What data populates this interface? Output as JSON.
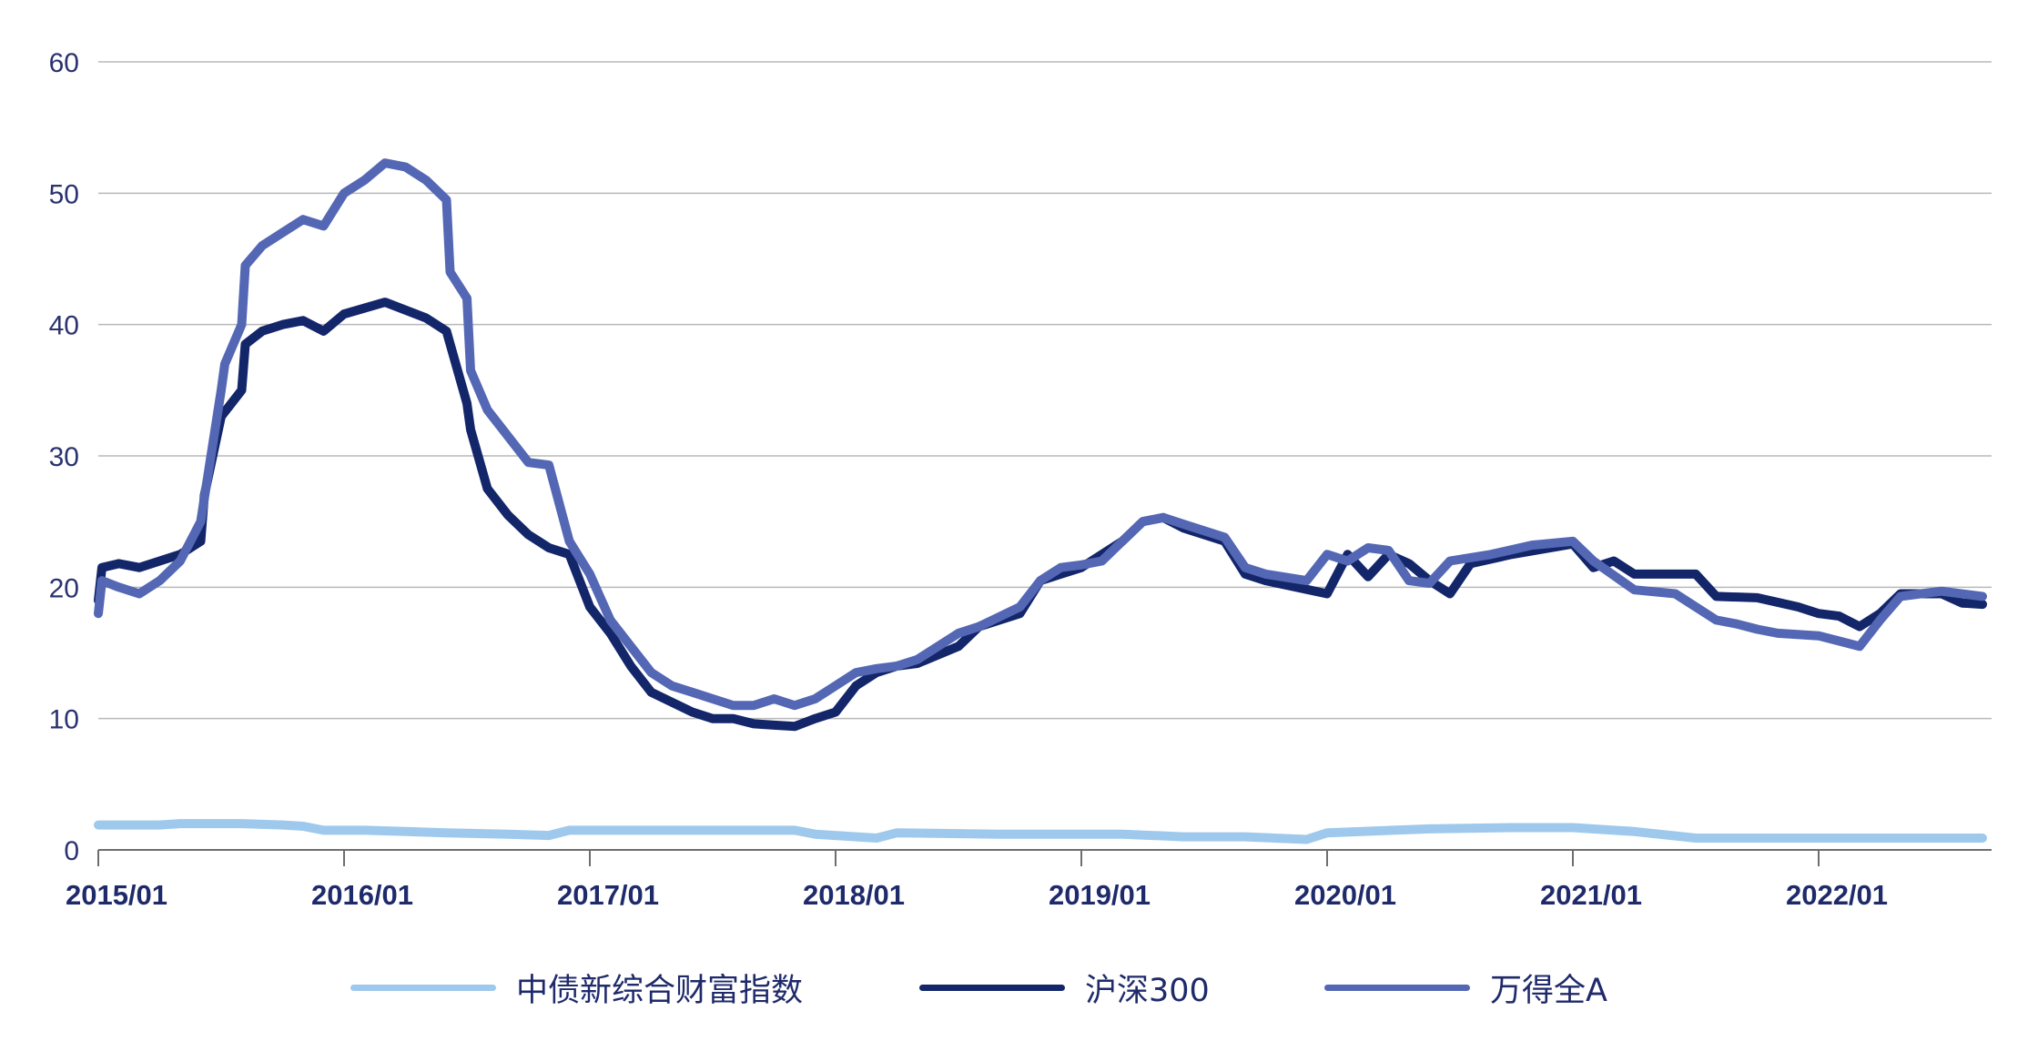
{
  "chart_data": {
    "type": "line",
    "title": "",
    "xlabel": "",
    "ylabel": "",
    "ylim": [
      0,
      60
    ],
    "y_ticks": [
      "0",
      "10",
      "20",
      "30",
      "40",
      "50",
      "60"
    ],
    "x_ticks": [
      "2015/01",
      "2016/01",
      "2017/01",
      "2018/01",
      "2019/01",
      "2020/01",
      "2021/01",
      "2022/01"
    ],
    "grid": "horizontal",
    "legend_position": "bottom",
    "series": [
      {
        "name": "中债新综合财富指数",
        "color": "#9ec9ec",
        "points": [
          [
            "2015/01",
            1.9
          ],
          [
            "2015/04",
            1.9
          ],
          [
            "2015/05",
            2.0
          ],
          [
            "2015/08",
            2.0
          ],
          [
            "2015/10",
            1.9
          ],
          [
            "2015/11",
            1.8
          ],
          [
            "2015/12",
            1.5
          ],
          [
            "2016/02",
            1.5
          ],
          [
            "2016/04",
            1.4
          ],
          [
            "2016/06",
            1.3
          ],
          [
            "2016/09",
            1.2
          ],
          [
            "2016/11",
            1.1
          ],
          [
            "2016/12",
            1.5
          ],
          [
            "2017/05",
            1.5
          ],
          [
            "2017/11",
            1.5
          ],
          [
            "2017/12",
            1.2
          ],
          [
            "2018/03",
            0.9
          ],
          [
            "2018/04",
            1.3
          ],
          [
            "2018/09",
            1.2
          ],
          [
            "2019/03",
            1.2
          ],
          [
            "2019/06",
            1.0
          ],
          [
            "2019/09",
            1.0
          ],
          [
            "2019/12",
            0.8
          ],
          [
            "2020/01",
            1.3
          ],
          [
            "2020/06",
            1.6
          ],
          [
            "2020/10",
            1.7
          ],
          [
            "2021/01",
            1.7
          ],
          [
            "2021/04",
            1.4
          ],
          [
            "2021/07",
            0.9
          ],
          [
            "2022/01",
            0.9
          ],
          [
            "2022/09",
            0.9
          ]
        ]
      },
      {
        "name": "沪深300",
        "color": "#13266a",
        "points": [
          [
            "2015/01",
            19.0
          ],
          [
            "2015/01",
            21.5
          ],
          [
            "2015/02",
            21.8
          ],
          [
            "2015/03",
            21.5
          ],
          [
            "2015/04",
            22.0
          ],
          [
            "2015/05",
            22.5
          ],
          [
            "2015/06",
            23.5
          ],
          [
            "2015/06",
            27.0
          ],
          [
            "2015/07",
            33.0
          ],
          [
            "2015/08",
            35.0
          ],
          [
            "2015/08",
            38.5
          ],
          [
            "2015/09",
            39.5
          ],
          [
            "2015/10",
            40.0
          ],
          [
            "2015/11",
            40.3
          ],
          [
            "2015/12",
            39.5
          ],
          [
            "2016/01",
            40.8
          ],
          [
            "2016/03",
            41.7
          ],
          [
            "2016/05",
            40.5
          ],
          [
            "2016/06",
            39.5
          ],
          [
            "2016/07",
            34.0
          ],
          [
            "2016/07",
            32.0
          ],
          [
            "2016/08",
            27.5
          ],
          [
            "2016/09",
            25.5
          ],
          [
            "2016/10",
            24.0
          ],
          [
            "2016/11",
            23.0
          ],
          [
            "2016/12",
            22.5
          ],
          [
            "2017/01",
            18.5
          ],
          [
            "2017/02",
            16.5
          ],
          [
            "2017/03",
            14.0
          ],
          [
            "2017/04",
            12.0
          ],
          [
            "2017/06",
            10.5
          ],
          [
            "2017/07",
            10.0
          ],
          [
            "2017/08",
            10.0
          ],
          [
            "2017/09",
            9.6
          ],
          [
            "2017/10",
            9.5
          ],
          [
            "2017/11",
            9.4
          ],
          [
            "2017/12",
            10.0
          ],
          [
            "2018/01",
            10.5
          ],
          [
            "2018/02",
            12.5
          ],
          [
            "2018/03",
            13.5
          ],
          [
            "2018/04",
            14.0
          ],
          [
            "2018/05",
            14.2
          ],
          [
            "2018/07",
            15.5
          ],
          [
            "2018/08",
            17.0
          ],
          [
            "2018/10",
            18.0
          ],
          [
            "2018/11",
            20.5
          ],
          [
            "2018/12",
            21.0
          ],
          [
            "2019/01",
            21.5
          ],
          [
            "2019/02",
            22.5
          ],
          [
            "2019/03",
            23.5
          ],
          [
            "2019/04",
            25.0
          ],
          [
            "2019/05",
            25.3
          ],
          [
            "2019/06",
            24.5
          ],
          [
            "2019/08",
            23.5
          ],
          [
            "2019/09",
            21.0
          ],
          [
            "2019/10",
            20.5
          ],
          [
            "2020/01",
            19.5
          ],
          [
            "2020/02",
            22.5
          ],
          [
            "2020/03",
            20.8
          ],
          [
            "2020/04",
            22.5
          ],
          [
            "2020/05",
            21.8
          ],
          [
            "2020/06",
            20.5
          ],
          [
            "2020/07",
            19.5
          ],
          [
            "2020/08",
            21.8
          ],
          [
            "2020/10",
            22.5
          ],
          [
            "2021/01",
            23.3
          ],
          [
            "2021/02",
            21.5
          ],
          [
            "2021/03",
            22.0
          ],
          [
            "2021/04",
            21.0
          ],
          [
            "2021/07",
            21.0
          ],
          [
            "2021/08",
            19.3
          ],
          [
            "2021/10",
            19.2
          ],
          [
            "2021/12",
            18.5
          ],
          [
            "2022/01",
            18.0
          ],
          [
            "2022/02",
            17.8
          ],
          [
            "2022/03",
            17.0
          ],
          [
            "2022/04",
            18.0
          ],
          [
            "2022/05",
            19.5
          ],
          [
            "2022/07",
            19.5
          ],
          [
            "2022/08",
            18.8
          ],
          [
            "2022/09",
            18.7
          ]
        ]
      },
      {
        "name": "万得全A",
        "color": "#5467b4",
        "points": [
          [
            "2015/01",
            18.0
          ],
          [
            "2015/01",
            20.5
          ],
          [
            "2015/02",
            20.0
          ],
          [
            "2015/03",
            19.5
          ],
          [
            "2015/04",
            20.5
          ],
          [
            "2015/05",
            22.0
          ],
          [
            "2015/06",
            25.0
          ],
          [
            "2015/07",
            35.0
          ],
          [
            "2015/07",
            37.0
          ],
          [
            "2015/08",
            40.0
          ],
          [
            "2015/08",
            44.5
          ],
          [
            "2015/09",
            46.0
          ],
          [
            "2015/10",
            47.0
          ],
          [
            "2015/11",
            48.0
          ],
          [
            "2015/12",
            47.5
          ],
          [
            "2016/01",
            50.0
          ],
          [
            "2016/02",
            51.0
          ],
          [
            "2016/03",
            52.3
          ],
          [
            "2016/04",
            52.0
          ],
          [
            "2016/05",
            51.0
          ],
          [
            "2016/06",
            49.5
          ],
          [
            "2016/06",
            44.0
          ],
          [
            "2016/07",
            42.0
          ],
          [
            "2016/07",
            36.5
          ],
          [
            "2016/08",
            33.5
          ],
          [
            "2016/09",
            31.5
          ],
          [
            "2016/10",
            29.5
          ],
          [
            "2016/11",
            29.3
          ],
          [
            "2016/12",
            23.5
          ],
          [
            "2017/01",
            21.0
          ],
          [
            "2017/02",
            17.5
          ],
          [
            "2017/03",
            15.5
          ],
          [
            "2017/04",
            13.5
          ],
          [
            "2017/05",
            12.5
          ],
          [
            "2017/06",
            12.0
          ],
          [
            "2017/07",
            11.5
          ],
          [
            "2017/08",
            11.0
          ],
          [
            "2017/09",
            11.0
          ],
          [
            "2017/10",
            11.5
          ],
          [
            "2017/11",
            11.0
          ],
          [
            "2017/12",
            11.5
          ],
          [
            "2018/01",
            12.5
          ],
          [
            "2018/02",
            13.5
          ],
          [
            "2018/03",
            13.8
          ],
          [
            "2018/04",
            14.0
          ],
          [
            "2018/05",
            14.5
          ],
          [
            "2018/06",
            15.5
          ],
          [
            "2018/07",
            16.5
          ],
          [
            "2018/08",
            17.0
          ],
          [
            "2018/10",
            18.5
          ],
          [
            "2018/11",
            20.5
          ],
          [
            "2018/12",
            21.5
          ],
          [
            "2019/01",
            21.7
          ],
          [
            "2019/02",
            22.0
          ],
          [
            "2019/03",
            23.5
          ],
          [
            "2019/04",
            25.0
          ],
          [
            "2019/05",
            25.3
          ],
          [
            "2019/06",
            24.8
          ],
          [
            "2019/08",
            23.8
          ],
          [
            "2019/09",
            21.5
          ],
          [
            "2019/10",
            21.0
          ],
          [
            "2019/12",
            20.5
          ],
          [
            "2020/01",
            22.5
          ],
          [
            "2020/02",
            22.0
          ],
          [
            "2020/03",
            23.0
          ],
          [
            "2020/04",
            22.8
          ],
          [
            "2020/05",
            20.5
          ],
          [
            "2020/06",
            20.3
          ],
          [
            "2020/07",
            22.0
          ],
          [
            "2020/09",
            22.5
          ],
          [
            "2020/11",
            23.2
          ],
          [
            "2021/01",
            23.5
          ],
          [
            "2021/02",
            22.0
          ],
          [
            "2021/04",
            19.8
          ],
          [
            "2021/06",
            19.5
          ],
          [
            "2021/08",
            17.5
          ],
          [
            "2021/09",
            17.2
          ],
          [
            "2021/10",
            16.8
          ],
          [
            "2021/11",
            16.5
          ],
          [
            "2022/01",
            16.3
          ],
          [
            "2022/03",
            15.5
          ],
          [
            "2022/04",
            17.5
          ],
          [
            "2022/05",
            19.3
          ],
          [
            "2022/06",
            19.5
          ],
          [
            "2022/07",
            19.7
          ],
          [
            "2022/09",
            19.3
          ]
        ]
      }
    ]
  }
}
